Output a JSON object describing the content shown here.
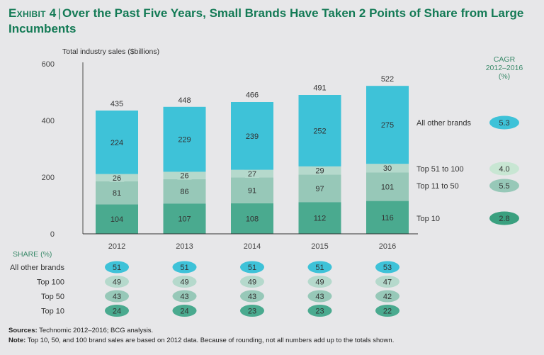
{
  "header": {
    "exhibit": "Exhibit 4",
    "title": "Over the Past Five Years, Small Brands Have Taken 2 Points of Share from Large Incumbents"
  },
  "chart_data": {
    "type": "bar",
    "stacked": true,
    "ylabel": "Total industry sales ($billions)",
    "ylim": [
      0,
      600
    ],
    "yticks": [
      0,
      200,
      400,
      600
    ],
    "categories": [
      "2012",
      "2013",
      "2014",
      "2015",
      "2016"
    ],
    "totals": [
      435,
      448,
      466,
      491,
      522
    ],
    "series": [
      {
        "name": "Top 10",
        "values": [
          104,
          107,
          108,
          112,
          116
        ],
        "color": "#4aaa8f",
        "cagr": "2.8",
        "cagr_color": "#3aa07f"
      },
      {
        "name": "Top 11 to 50",
        "values": [
          81,
          86,
          91,
          97,
          101
        ],
        "color": "#97c8b8",
        "cagr": "5.5",
        "cagr_color": "#97c8b8"
      },
      {
        "name": "Top 51 to 100",
        "values": [
          26,
          26,
          27,
          29,
          30
        ],
        "color": "#b5d9cc",
        "cagr": "4.0",
        "cagr_color": "#c8e6d3"
      },
      {
        "name": "All other brands",
        "values": [
          224,
          229,
          239,
          252,
          275
        ],
        "color": "#3ec2d8",
        "cagr": "5.3",
        "cagr_color": "#3ec2d8"
      }
    ],
    "cagr_header": [
      "CAGR",
      "2012–2016",
      "(%)"
    ],
    "share": {
      "title": "SHARE (%)",
      "rows": [
        {
          "label": "All other brands",
          "values": [
            51,
            51,
            51,
            51,
            53
          ],
          "color": "#3ec2d8"
        },
        {
          "label": "Top 100",
          "values": [
            49,
            49,
            49,
            49,
            47
          ],
          "color": "#b5d9cc"
        },
        {
          "label": "Top 50",
          "values": [
            43,
            43,
            43,
            43,
            42
          ],
          "color": "#97c8b8"
        },
        {
          "label": "Top 10",
          "values": [
            24,
            24,
            23,
            23,
            22
          ],
          "color": "#4aaa8f"
        }
      ]
    }
  },
  "footer": {
    "sources_label": "Sources:",
    "sources": "Technomic 2012–2016; BCG analysis.",
    "note_label": "Note:",
    "note": "Top 10, 50, and 100 brand sales are based on 2012 data. Because of rounding, not all numbers add up to the totals shown."
  }
}
